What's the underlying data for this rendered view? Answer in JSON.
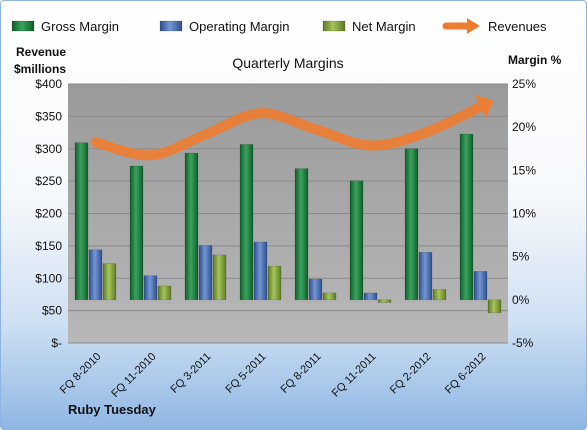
{
  "company": "Ruby Tuesday",
  "colors": {
    "gross": "#1e7e3e",
    "operating": "#4a6fb5",
    "net": "#7f9f3c",
    "revenues": "#ed7d31",
    "plot_bg": "#a6a6a6"
  },
  "chart_data": {
    "type": "bar",
    "title": "Quarterly Margins",
    "y_left_label_line1": "Revenue",
    "y_left_label_line2": "$millions",
    "y_right_label": "Margin %",
    "categories": [
      "FQ 8-2010",
      "FQ 11-2010",
      "FQ 3-2011",
      "FQ 5-2011",
      "FQ 8-2011",
      "FQ 11-2011",
      "FQ 2-2012",
      "FQ 6-2012"
    ],
    "y_left_ticks": [
      "$-",
      "$50",
      "$100",
      "$150",
      "$200",
      "$250",
      "$300",
      "$350",
      "$400"
    ],
    "y_right_ticks": [
      "-5%",
      "0%",
      "5%",
      "10%",
      "15%",
      "20%",
      "25%"
    ],
    "ylim_right": [
      -5,
      25
    ],
    "ylim_left": [
      0,
      400
    ],
    "series": [
      {
        "name": "Gross Margin",
        "axis": "right",
        "values": [
          18.2,
          15.5,
          17.0,
          18.0,
          15.2,
          13.8,
          17.5,
          19.2
        ]
      },
      {
        "name": "Operating Margin",
        "axis": "right",
        "values": [
          5.8,
          2.8,
          6.3,
          6.7,
          2.4,
          0.8,
          5.5,
          3.3
        ]
      },
      {
        "name": "Net Margin",
        "axis": "right",
        "values": [
          4.2,
          1.6,
          5.2,
          3.9,
          0.8,
          -0.3,
          1.2,
          -1.5
        ]
      },
      {
        "name": "Revenues",
        "axis": "left",
        "type": "line",
        "values": [
          310,
          290,
          322,
          355,
          330,
          305,
          325,
          365
        ]
      }
    ],
    "legend_position": "top"
  }
}
